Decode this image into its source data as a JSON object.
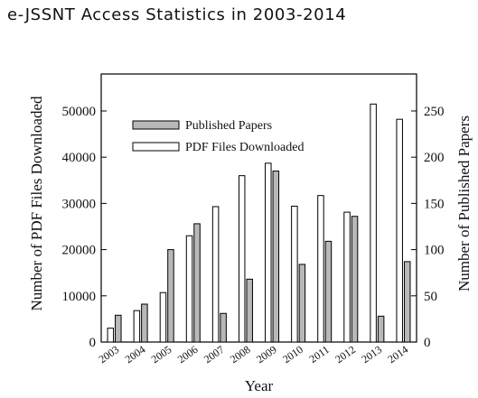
{
  "chart_data": {
    "type": "bar",
    "title": "e-JSSNT Access Statistics in 2003-2014",
    "xlabel": "Year",
    "ylabel": "Number of PDF Files Downloaded",
    "y2label": "Number of Published Papers",
    "ylim": [
      0,
      58000
    ],
    "y2lim": [
      0,
      290
    ],
    "yticks": [
      0,
      10000,
      20000,
      30000,
      40000,
      50000
    ],
    "y2ticks": [
      0,
      50,
      100,
      150,
      200,
      250
    ],
    "categories": [
      "2003",
      "2004",
      "2005",
      "2006",
      "2007",
      "2008",
      "2009",
      "2010",
      "2011",
      "2012",
      "2013",
      "2014"
    ],
    "series": [
      {
        "name": "PDF Files Downloaded",
        "axis": "left",
        "color": "#ffffff",
        "values": [
          3000,
          6800,
          10700,
          23000,
          29300,
          36000,
          38700,
          29400,
          31700,
          28100,
          51500,
          48200
        ]
      },
      {
        "name": "Published Papers",
        "axis": "right",
        "color": "#b8b8b8",
        "values": [
          29,
          41,
          100,
          128,
          31,
          68,
          185,
          84,
          109,
          136,
          28,
          87
        ]
      }
    ],
    "legend": "top-left",
    "grid": false
  }
}
